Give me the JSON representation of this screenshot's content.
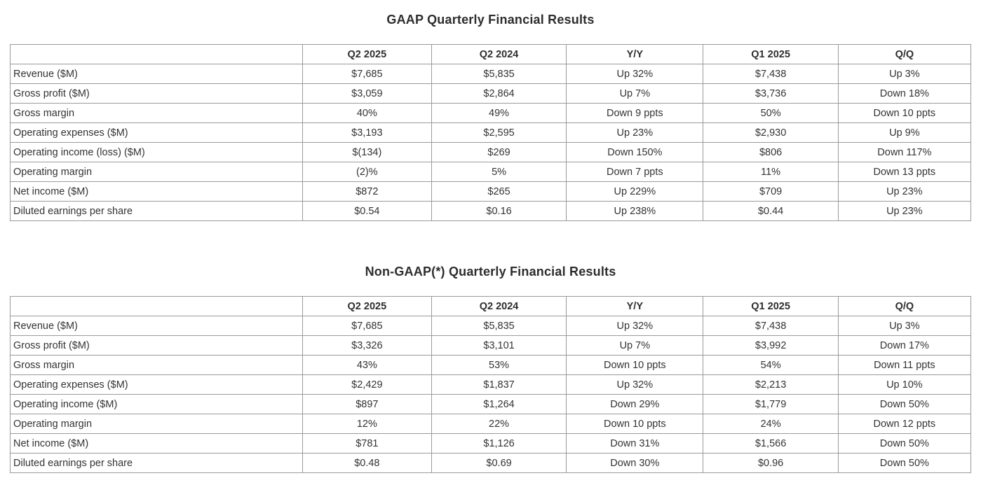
{
  "tables": [
    {
      "title": "GAAP Quarterly Financial Results",
      "headers": [
        "",
        "Q2 2025",
        "Q2 2024",
        "Y/Y",
        "Q1 2025",
        "Q/Q"
      ],
      "rows": [
        [
          "Revenue ($M)",
          "$7,685",
          "$5,835",
          "Up 32%",
          "$7,438",
          "Up 3%"
        ],
        [
          "Gross profit ($M)",
          "$3,059",
          "$2,864",
          "Up 7%",
          "$3,736",
          "Down 18%"
        ],
        [
          "Gross margin",
          "40%",
          "49%",
          "Down 9 ppts",
          "50%",
          "Down 10 ppts"
        ],
        [
          "Operating expenses ($M)",
          "$3,193",
          "$2,595",
          "Up 23%",
          "$2,930",
          "Up 9%"
        ],
        [
          "Operating income (loss) ($M)",
          "$(134)",
          "$269",
          "Down 150%",
          "$806",
          "Down 117%"
        ],
        [
          "Operating margin",
          "(2)%",
          "5%",
          "Down 7 ppts",
          "11%",
          "Down 13 ppts"
        ],
        [
          "Net income ($M)",
          "$872",
          "$265",
          "Up 229%",
          "$709",
          "Up 23%"
        ],
        [
          "Diluted earnings per share",
          "$0.54",
          "$0.16",
          "Up 238%",
          "$0.44",
          "Up 23%"
        ]
      ]
    },
    {
      "title": "Non-GAAP(*) Quarterly Financial Results",
      "headers": [
        "",
        "Q2 2025",
        "Q2 2024",
        "Y/Y",
        "Q1 2025",
        "Q/Q"
      ],
      "rows": [
        [
          "Revenue ($M)",
          "$7,685",
          "$5,835",
          "Up 32%",
          "$7,438",
          "Up 3%"
        ],
        [
          "Gross profit ($M)",
          "$3,326",
          "$3,101",
          "Up 7%",
          "$3,992",
          "Down 17%"
        ],
        [
          "Gross margin",
          "43%",
          "53%",
          "Down 10 ppts",
          "54%",
          "Down 11 ppts"
        ],
        [
          "Operating expenses ($M)",
          "$2,429",
          "$1,837",
          "Up 32%",
          "$2,213",
          "Up 10%"
        ],
        [
          "Operating income ($M)",
          "$897",
          "$1,264",
          "Down 29%",
          "$1,779",
          "Down 50%"
        ],
        [
          "Operating margin",
          "12%",
          "22%",
          "Down 10 ppts",
          "24%",
          "Down 12 ppts"
        ],
        [
          "Net income ($M)",
          "$781",
          "$1,126",
          "Down 31%",
          "$1,566",
          "Down 50%"
        ],
        [
          "Diluted earnings per share",
          "$0.48",
          "$0.69",
          "Down 30%",
          "$0.96",
          "Down 50%"
        ]
      ]
    }
  ],
  "colors": {
    "text": "#333333",
    "border": "#9a9a9a",
    "background": "#ffffff"
  }
}
